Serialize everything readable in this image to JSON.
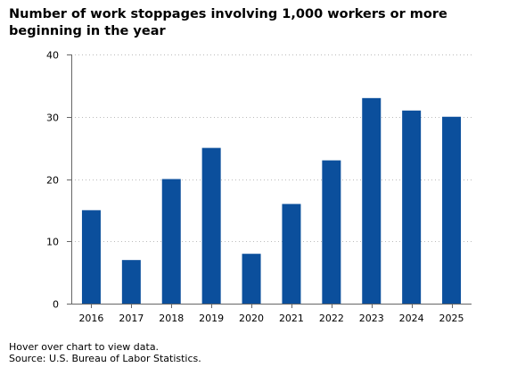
{
  "chart_data": {
    "type": "bar",
    "title": "Number of work stoppages involving 1,000 workers or more beginning in the year",
    "xlabel": "",
    "ylabel": "",
    "categories": [
      "2016",
      "2017",
      "2018",
      "2019",
      "2020",
      "2021",
      "2022",
      "2023",
      "2024",
      "2025"
    ],
    "values": [
      15,
      7,
      20,
      25,
      8,
      16,
      23,
      33,
      31,
      30
    ],
    "ylim": [
      0,
      40
    ],
    "yticks": [
      0,
      10,
      20,
      30,
      40
    ],
    "grid": true,
    "legend": "none",
    "bar_color": "#0b4f9c",
    "grid_color": "#bbbbbb",
    "axis_color": "#666666"
  },
  "footer": {
    "hint": "Hover over chart to view data.",
    "source": "Source: U.S. Bureau of Labor Statistics."
  }
}
